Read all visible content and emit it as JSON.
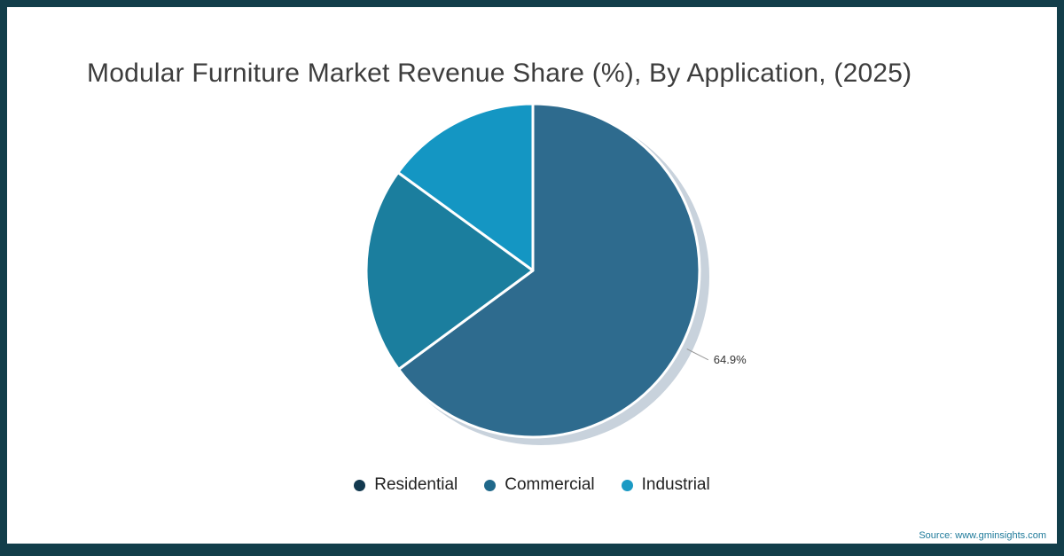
{
  "title": "Modular Furniture Market Revenue Share (%), By Application, (2025)",
  "source": "Source: www.gminsights.com",
  "frame": {
    "border_color": "#123E4A",
    "background": "#ffffff"
  },
  "chart_data": {
    "type": "pie",
    "title": "Modular Furniture Market Revenue Share (%), By Application, (2025)",
    "labels": [
      "Residential",
      "Commercial",
      "Industrial"
    ],
    "values": [
      64.9,
      20.1,
      15.0
    ],
    "colors": [
      "#2E6B8E",
      "#1B7E9E",
      "#1496C3"
    ],
    "start_angle_deg": 0,
    "direction": "clockwise",
    "slice_border_color": "#ffffff",
    "shadow_color": "#C8D2DC",
    "data_labels": [
      {
        "index": 0,
        "text": "64.9%"
      }
    ],
    "legend_position": "bottom"
  },
  "legend": {
    "items": [
      {
        "label": "Residential",
        "color": "#12394F"
      },
      {
        "label": "Commercial",
        "color": "#20688A"
      },
      {
        "label": "Industrial",
        "color": "#1B9AC4"
      }
    ]
  }
}
